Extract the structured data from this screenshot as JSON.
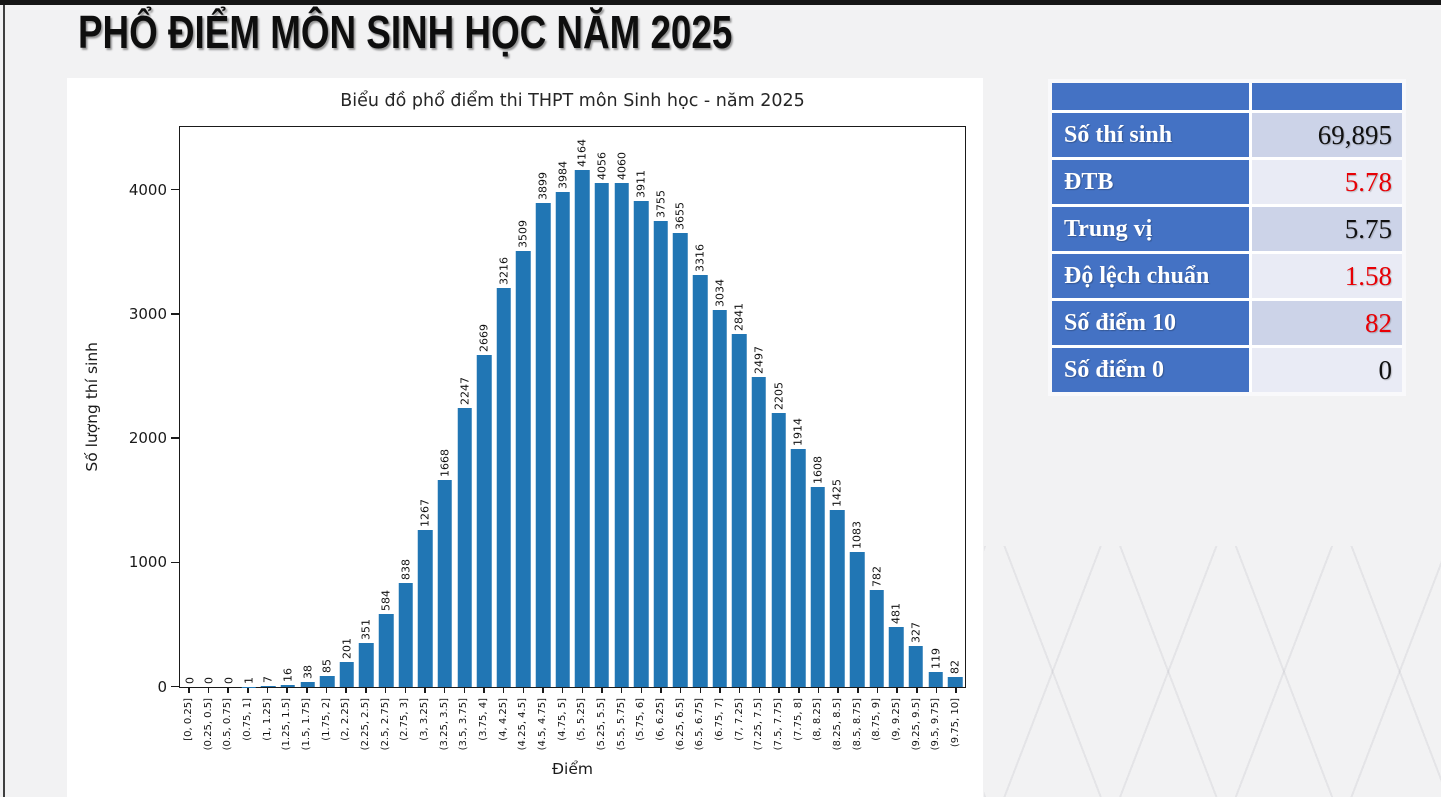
{
  "page": {
    "title": "PHỔ ĐIỂM MÔN SINH HỌC NĂM 2025"
  },
  "chart_data": {
    "type": "bar",
    "title": "Biểu đồ phổ điểm thi THPT môn Sinh học - năm 2025",
    "xlabel": "Điểm",
    "ylabel": "Số lượng thí sinh",
    "ylim": [
      0,
      4500
    ],
    "yticks": [
      0,
      1000,
      2000,
      3000,
      4000
    ],
    "grid": "off",
    "bar_color": "#2176b4",
    "categories": [
      "[0, 0.25]",
      "(0.25, 0.5]",
      "(0.5, 0.75]",
      "(0.75, 1]",
      "(1, 1.25]",
      "(1.25, 1.5]",
      "(1.5, 1.75]",
      "(1.75, 2]",
      "(2, 2.25]",
      "(2.25, 2.5]",
      "(2.5, 2.75]",
      "(2.75, 3]",
      "(3, 3.25]",
      "(3.25, 3.5]",
      "(3.5, 3.75]",
      "(3.75, 4]",
      "(4, 4.25]",
      "(4.25, 4.5]",
      "(4.5, 4.75]",
      "(4.75, 5]",
      "(5, 5.25]",
      "(5.25, 5.5]",
      "(5.5, 5.75]",
      "(5.75, 6]",
      "(6, 6.25]",
      "(6.25, 6.5]",
      "(6.5, 6.75]",
      "(6.75, 7]",
      "(7, 7.25]",
      "(7.25, 7.5]",
      "(7.5, 7.75]",
      "(7.75, 8]",
      "(8, 8.25]",
      "(8.25, 8.5]",
      "(8.5, 8.75]",
      "(8.75, 9]",
      "(9, 9.25]",
      "(9.25, 9.5]",
      "(9.5, 9.75]",
      "(9.75, 10]"
    ],
    "values": [
      0,
      0,
      0,
      1,
      7,
      16,
      38,
      85,
      201,
      351,
      584,
      838,
      1267,
      1668,
      2247,
      2669,
      3216,
      3509,
      3899,
      3984,
      4164,
      4056,
      4060,
      3911,
      3755,
      3655,
      3316,
      3034,
      2841,
      2497,
      2205,
      1914,
      1608,
      1425,
      1083,
      782,
      481,
      327,
      119,
      82
    ]
  },
  "stats_table": {
    "header": [
      "",
      ""
    ],
    "rows": [
      {
        "label": "Số thí sinh",
        "value": "69,895",
        "value_color": "black"
      },
      {
        "label": "ĐTB",
        "value": "5.78",
        "value_color": "red"
      },
      {
        "label": "Trung vị",
        "value": "5.75",
        "value_color": "black"
      },
      {
        "label": "Độ lệch chuẩn",
        "value": "1.58",
        "value_color": "red"
      },
      {
        "label": "Số điểm 10",
        "value": "82",
        "value_color": "red"
      },
      {
        "label": "Số điểm 0",
        "value": "0",
        "value_color": "black"
      }
    ],
    "colors": {
      "header_bg": "#4472c4",
      "row_band_dark": "#ccd3e8",
      "row_band_light": "#e9ebf5",
      "red": "#e80005",
      "black": "#111111"
    }
  }
}
